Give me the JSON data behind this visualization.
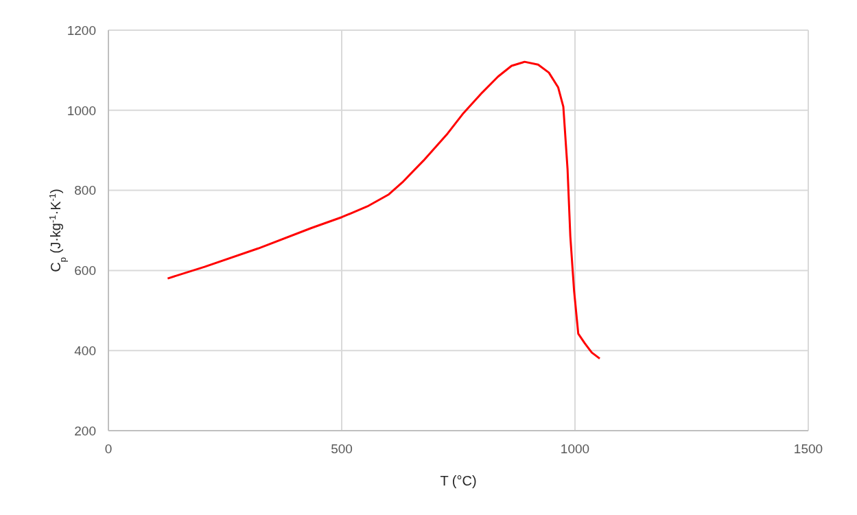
{
  "chart_data": {
    "type": "line",
    "xlabel": "T (°C)",
    "ylabel": "C$_{p}$ (J·kg$^{-1}$·K$^{-1}$)",
    "xlim": [
      0,
      1500
    ],
    "xticks": [
      0,
      500,
      1000,
      1500
    ],
    "ylim": [
      200,
      1200
    ],
    "yticks": [
      200,
      400,
      600,
      800,
      1000,
      1200
    ],
    "grid": true,
    "marker": "none",
    "line_style": "solid",
    "series": [
      {
        "color": "#ff0000",
        "x": [
          127,
          206,
          321,
          435,
          500,
          555,
          601,
          630,
          675,
          727,
          761,
          801,
          835,
          864,
          892,
          921,
          944,
          964,
          975,
          984,
          990,
          998,
          1007,
          1021,
          1036,
          1053
        ],
        "values": [
          580,
          609,
          655,
          706,
          733,
          760,
          790,
          820,
          874,
          942,
          993,
          1044,
          1084,
          1111,
          1121,
          1114,
          1094,
          1057,
          1009,
          854,
          685,
          550,
          442,
          418,
          395,
          380
        ]
      }
    ]
  }
}
